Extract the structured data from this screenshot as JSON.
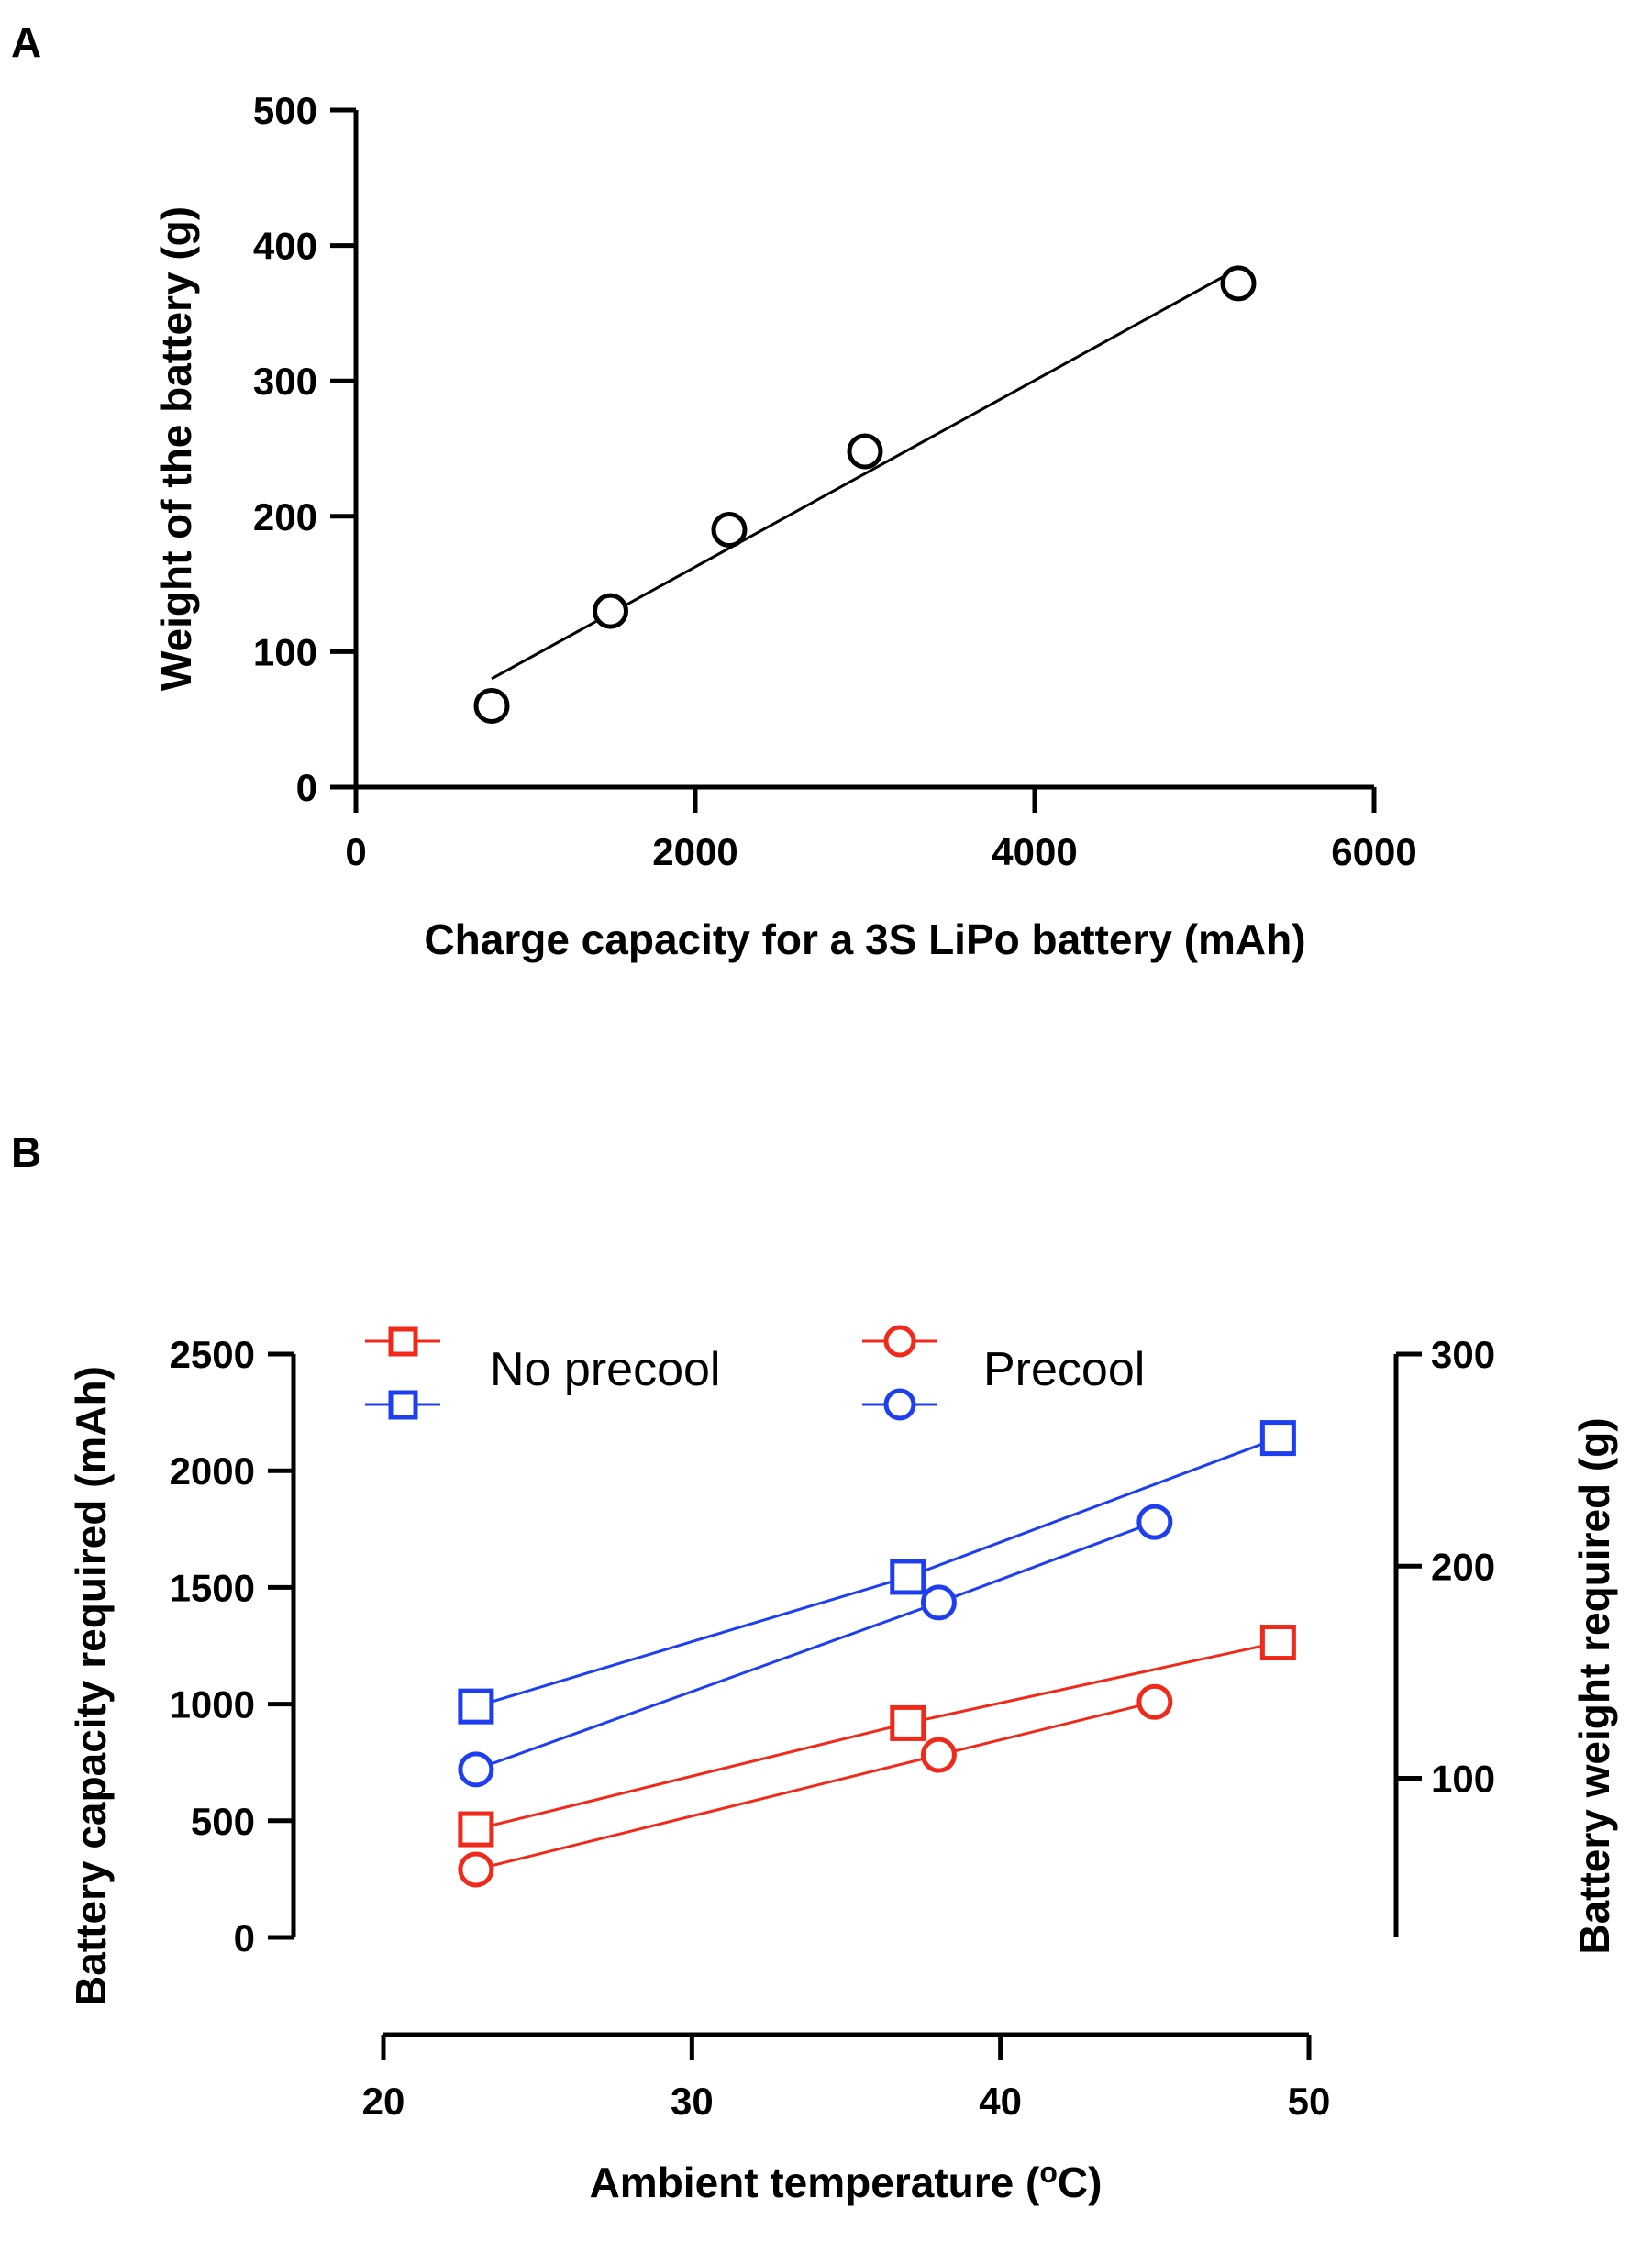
{
  "chart_data": [
    {
      "panel": "A",
      "type": "scatter",
      "xlabel": "Charge capacity for a 3S LiPo battery (mAh)",
      "ylabel": "Weight of the battery (g)",
      "xlim": [
        0,
        6000
      ],
      "ylim": [
        0,
        500
      ],
      "xticks": [
        0,
        2000,
        4000,
        6000
      ],
      "yticks": [
        0,
        100,
        200,
        300,
        400,
        500
      ],
      "grid": false,
      "series": [
        {
          "name": "3S LiPo batteries",
          "marker": "circle",
          "color": "#000000",
          "x": [
            800,
            1500,
            2200,
            3000,
            5200
          ],
          "y": [
            60,
            130,
            190,
            248,
            372
          ]
        }
      ],
      "fit": {
        "x": [
          800,
          5200
        ],
        "y": [
          80,
          383
        ],
        "color": "#000000"
      }
    },
    {
      "panel": "B",
      "type": "line",
      "xlabel": "Ambient temperature (",
      "xlabel_sup": "o",
      "xlabel_suffix": "C)",
      "ylabel_left": "Battery capacity required (mAh)",
      "ylabel_right": "Battery weight required (g)",
      "ylabel_left_color": "#1e3ff0",
      "ylabel_right_color": "#f02a1a",
      "xlim": [
        20,
        50
      ],
      "ylim_left": [
        0,
        2500
      ],
      "ylim_right": [
        25,
        300
      ],
      "xticks": [
        20,
        30,
        40,
        50
      ],
      "yticks_left": [
        0,
        500,
        1000,
        1500,
        2000,
        2500
      ],
      "yticks_right": [
        100,
        200,
        300
      ],
      "legend": {
        "no_precool": "No precool",
        "precool": "Precool"
      },
      "series": [
        {
          "name": "No precool capacity",
          "axis": "left",
          "marker": "square",
          "color": "#1e3ff0",
          "x": [
            23,
            37,
            49
          ],
          "y": [
            990,
            1545,
            2140
          ]
        },
        {
          "name": "Precool capacity",
          "axis": "left",
          "marker": "circle",
          "color": "#1e3ff0",
          "x": [
            23,
            38,
            45
          ],
          "y": [
            720,
            1435,
            1780
          ]
        },
        {
          "name": "No precool weight",
          "axis": "right",
          "marker": "square",
          "color": "#f02a1a",
          "x": [
            23,
            37,
            49
          ],
          "y": [
            76,
            126,
            164
          ]
        },
        {
          "name": "Precool weight",
          "axis": "right",
          "marker": "circle",
          "color": "#f02a1a",
          "x": [
            23,
            38,
            45
          ],
          "y": [
            57,
            111,
            136
          ]
        }
      ]
    }
  ]
}
